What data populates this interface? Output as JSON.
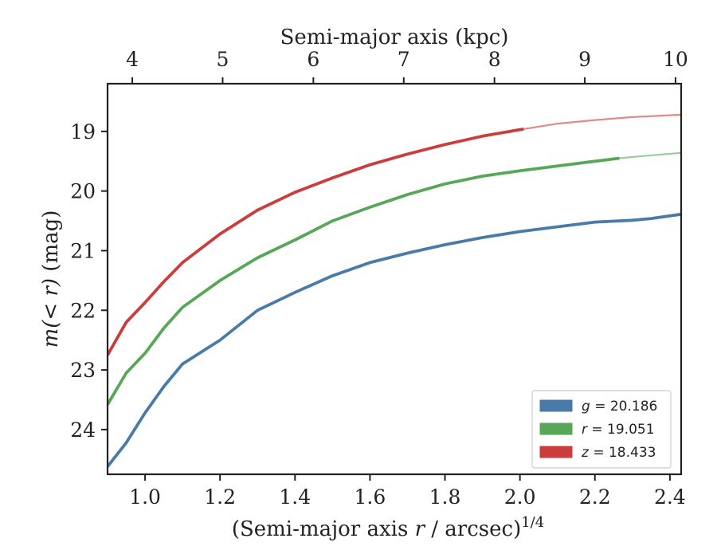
{
  "chart_data": {
    "type": "line",
    "x_bottom": {
      "label_pre": "(Semi-major axis ",
      "label_var": "r",
      "label_post": " / arcsec)",
      "label_sup": "1/4",
      "range": [
        0.9,
        2.43
      ],
      "ticks": [
        1.0,
        1.2,
        1.4,
        1.6,
        1.8,
        2.0,
        2.2,
        2.4
      ],
      "tick_labels": [
        "1.0",
        "1.2",
        "1.4",
        "1.6",
        "1.8",
        "2.0",
        "2.2",
        "2.4"
      ]
    },
    "x_top": {
      "label": "Semi-major axis (kpc)",
      "ticks": [
        4,
        5,
        6,
        7,
        8,
        9,
        10
      ],
      "tick_labels": [
        "4",
        "5",
        "6",
        "7",
        "8",
        "9",
        "10"
      ],
      "tick_positions_in_bottom_units": [
        0.966,
        1.207,
        1.449,
        1.69,
        1.932,
        2.173,
        2.415
      ]
    },
    "y": {
      "label_pre": "m(< r)",
      "label_post": " (mag)",
      "range": [
        24.75,
        18.2
      ],
      "inverted": true,
      "ticks": [
        19,
        20,
        21,
        22,
        23,
        24
      ],
      "tick_labels": [
        "19",
        "20",
        "21",
        "22",
        "23",
        "24"
      ]
    },
    "series": [
      {
        "name": "g",
        "legend_label": "g = 20.186",
        "legend_var": "g",
        "legend_value": "= 20.186",
        "color": "#4a7ba8",
        "solid_x": [
          0.9,
          0.95,
          1.0,
          1.05,
          1.1,
          1.2,
          1.3,
          1.4,
          1.5,
          1.6,
          1.7,
          1.8,
          1.9,
          2.0,
          2.1,
          2.2,
          2.3,
          2.35,
          2.43
        ],
        "solid_y": [
          24.62,
          24.22,
          23.72,
          23.28,
          22.9,
          22.5,
          22.0,
          21.7,
          21.42,
          21.2,
          21.04,
          20.9,
          20.78,
          20.68,
          20.6,
          20.52,
          20.49,
          20.46,
          20.39
        ],
        "faded_x": [],
        "faded_y": []
      },
      {
        "name": "r",
        "legend_label": "r = 19.051",
        "legend_var": "r",
        "legend_value": "= 19.051",
        "color": "#58a758",
        "solid_x": [
          0.9,
          0.95,
          1.0,
          1.05,
          1.1,
          1.2,
          1.3,
          1.4,
          1.5,
          1.6,
          1.7,
          1.8,
          1.9,
          2.0,
          2.1,
          2.2,
          2.265
        ],
        "solid_y": [
          23.58,
          23.05,
          22.72,
          22.3,
          21.95,
          21.5,
          21.12,
          20.82,
          20.5,
          20.27,
          20.06,
          19.88,
          19.75,
          19.66,
          19.58,
          19.5,
          19.45
        ],
        "faded_x": [
          2.265,
          2.35,
          2.43
        ],
        "faded_y": [
          19.45,
          19.4,
          19.36
        ]
      },
      {
        "name": "z",
        "legend_label": "z = 18.433",
        "legend_var": "z",
        "legend_value": "= 18.433",
        "color": "#cc3c3c",
        "solid_x": [
          0.9,
          0.95,
          1.0,
          1.05,
          1.1,
          1.2,
          1.3,
          1.4,
          1.5,
          1.6,
          1.7,
          1.8,
          1.9,
          2.0,
          2.01
        ],
        "solid_y": [
          22.75,
          22.2,
          21.87,
          21.52,
          21.2,
          20.72,
          20.32,
          20.02,
          19.78,
          19.56,
          19.38,
          19.22,
          19.08,
          18.97,
          18.96
        ],
        "faded_x": [
          2.01,
          2.1,
          2.2,
          2.3,
          2.43
        ],
        "faded_y": [
          18.96,
          18.87,
          18.81,
          18.76,
          18.72
        ]
      }
    ],
    "legend_position": "lower right",
    "grid": false
  }
}
